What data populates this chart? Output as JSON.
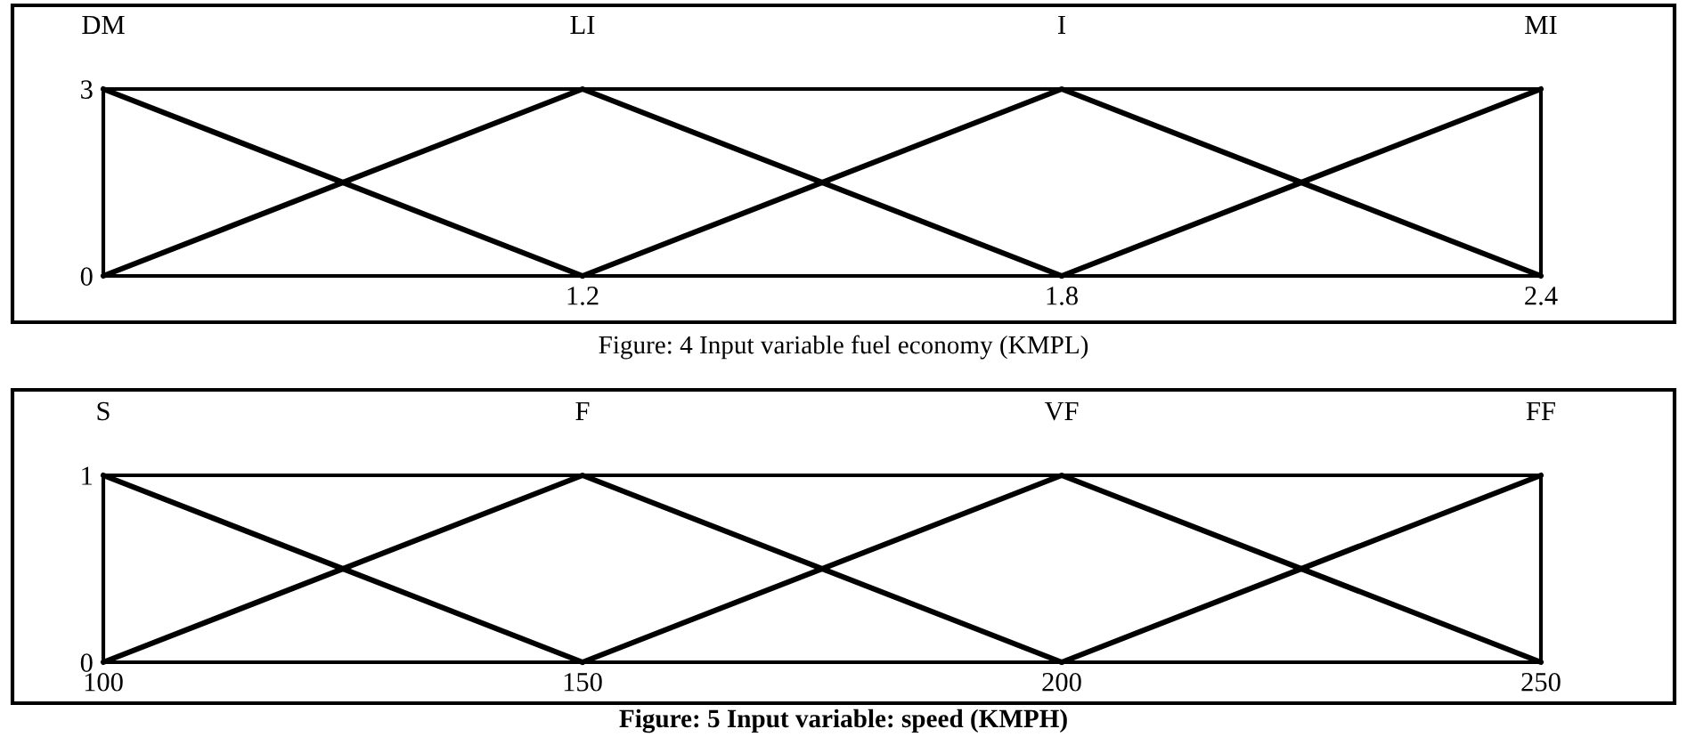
{
  "chart_data": [
    {
      "type": "line",
      "xlim": [
        0.6,
        2.4
      ],
      "ylim": [
        0,
        3
      ],
      "xticks": [
        1.2,
        1.8,
        2.4
      ],
      "yticks": [
        0,
        3
      ],
      "series": [
        {
          "name": "DM",
          "color": "#000000",
          "x": [
            0.6,
            1.2
          ],
          "values": [
            3,
            0
          ]
        },
        {
          "name": "LI",
          "color": "#000000",
          "x": [
            0.6,
            1.2,
            1.8
          ],
          "values": [
            0,
            3,
            0
          ]
        },
        {
          "name": "I",
          "color": "#000000",
          "x": [
            1.2,
            1.8,
            2.4
          ],
          "values": [
            0,
            3,
            0
          ]
        },
        {
          "name": "MI",
          "color": "#000000",
          "x": [
            1.8,
            2.4
          ],
          "values": [
            0,
            3
          ]
        }
      ],
      "annotations": [
        "Figure: 4 Input variable fuel economy (KMPL)"
      ]
    },
    {
      "type": "line",
      "xlim": [
        100,
        250
      ],
      "ylim": [
        0,
        1
      ],
      "xticks": [
        100,
        150,
        200,
        250
      ],
      "yticks": [
        0,
        1
      ],
      "series": [
        {
          "name": "S",
          "color": "#000000",
          "x": [
            100,
            150
          ],
          "values": [
            1,
            0
          ]
        },
        {
          "name": "F",
          "color": "#000000",
          "x": [
            100,
            150,
            200
          ],
          "values": [
            0,
            1,
            0
          ]
        },
        {
          "name": "VF",
          "color": "#000000",
          "x": [
            150,
            200,
            250
          ],
          "values": [
            0,
            1,
            0
          ]
        },
        {
          "name": "FF",
          "color": "#000000",
          "x": [
            200,
            250
          ],
          "values": [
            0,
            1
          ]
        }
      ],
      "annotations": [
        "Figure: 5 Input variable: speed (KMPH)"
      ]
    }
  ]
}
